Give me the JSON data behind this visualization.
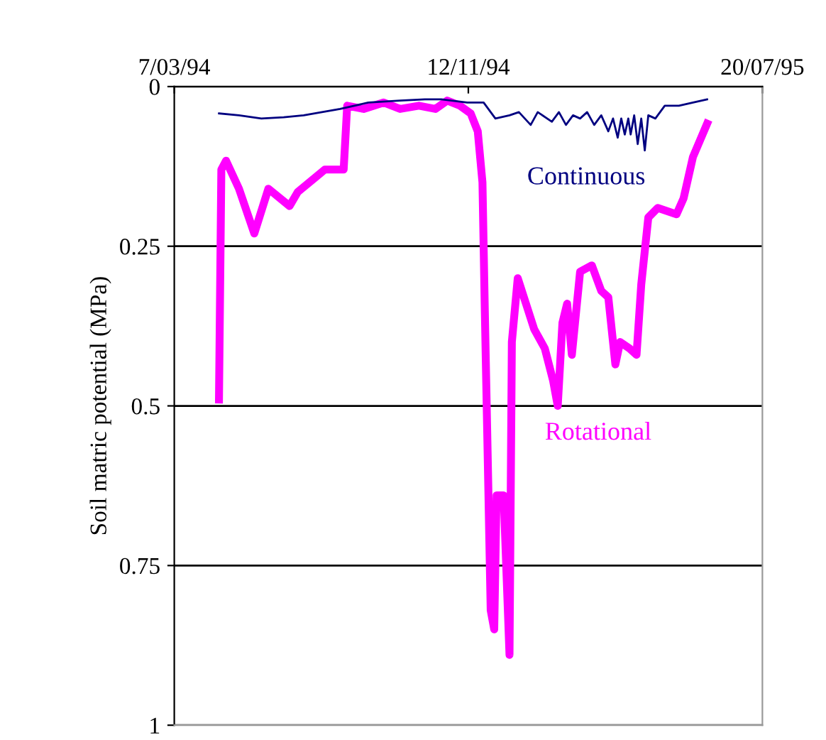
{
  "chart_data": {
    "type": "line",
    "ylabel": "Soil matric potential (MPa)",
    "xlim": [
      "1994-03-07",
      "1995-07-20"
    ],
    "xticks": [
      {
        "value": "1994-03-07",
        "label": "7/03/94"
      },
      {
        "value": "1994-11-12",
        "label": "12/11/94"
      },
      {
        "value": "1995-07-20",
        "label": "20/07/95"
      }
    ],
    "ylim": [
      1,
      0
    ],
    "yticks": [
      0,
      0.25,
      0.5,
      0.75,
      1
    ],
    "grid": "y",
    "legend": false,
    "marker": "none",
    "line_style": "solid",
    "series": [
      {
        "name": "Continuous",
        "color": "#000080",
        "x": [
          "1994-04-14",
          "1994-05-01",
          "1994-05-20",
          "1994-06-08",
          "1994-06-25",
          "1994-07-26",
          "1994-08-19",
          "1994-09-15",
          "1994-10-06",
          "1994-10-20",
          "1994-11-11",
          "1994-11-25",
          "1994-12-05",
          "1994-12-17",
          "1994-12-25",
          "1995-01-04",
          "1995-01-10",
          "1995-01-22",
          "1995-01-28",
          "1995-02-03",
          "1995-02-09",
          "1995-02-15",
          "1995-02-21",
          "1995-02-27",
          "1995-03-05",
          "1995-03-11",
          "1995-03-15",
          "1995-03-19",
          "1995-03-22",
          "1995-03-25",
          "1995-03-28",
          "1995-03-30",
          "1995-04-02",
          "1995-04-05",
          "1995-04-08",
          "1995-04-11",
          "1995-04-14",
          "1995-04-20",
          "1995-04-28",
          "1995-05-10",
          "1995-05-22",
          "1995-06-03"
        ],
        "values": [
          0.042,
          0.045,
          0.05,
          0.048,
          0.045,
          0.035,
          0.025,
          0.022,
          0.02,
          0.02,
          0.025,
          0.025,
          0.05,
          0.045,
          0.04,
          0.06,
          0.04,
          0.055,
          0.04,
          0.06,
          0.045,
          0.05,
          0.04,
          0.06,
          0.045,
          0.07,
          0.05,
          0.08,
          0.05,
          0.075,
          0.05,
          0.075,
          0.045,
          0.09,
          0.05,
          0.1,
          0.045,
          0.05,
          0.03,
          0.03,
          0.025,
          0.02
        ]
      },
      {
        "name": "Rotational",
        "color": "#ff00ff",
        "x": [
          "1994-04-14",
          "1994-04-16",
          "1994-04-20",
          "1994-05-01",
          "1994-05-14",
          "1994-05-26",
          "1994-06-13",
          "1994-06-20",
          "1994-07-13",
          "1994-07-29",
          "1994-08-01",
          "1994-08-15",
          "1994-09-01",
          "1994-09-15",
          "1994-10-01",
          "1994-10-15",
          "1994-10-25",
          "1994-11-05",
          "1994-11-14",
          "1994-11-20",
          "1994-11-24",
          "1994-11-26",
          "1994-11-29",
          "1994-12-01",
          "1994-12-04",
          "1994-12-06",
          "1994-12-12",
          "1994-12-17",
          "1994-12-19",
          "1994-12-24",
          "1994-12-31",
          "1995-01-07",
          "1995-01-16",
          "1995-01-23",
          "1995-01-27",
          "1995-01-31",
          "1995-02-04",
          "1995-02-08",
          "1995-02-15",
          "1995-02-25",
          "1995-03-05",
          "1995-03-11",
          "1995-03-17",
          "1995-03-21",
          "1995-03-29",
          "1995-04-04",
          "1995-04-08",
          "1995-04-14",
          "1995-04-22",
          "1995-05-08",
          "1995-05-14",
          "1995-05-22",
          "1995-06-03"
        ],
        "values": [
          0.49,
          0.13,
          0.116,
          0.16,
          0.23,
          0.16,
          0.187,
          0.165,
          0.13,
          0.13,
          0.03,
          0.035,
          0.025,
          0.035,
          0.03,
          0.035,
          0.022,
          0.03,
          0.042,
          0.07,
          0.15,
          0.35,
          0.63,
          0.82,
          0.85,
          0.64,
          0.64,
          0.89,
          0.4,
          0.3,
          0.34,
          0.38,
          0.41,
          0.46,
          0.5,
          0.37,
          0.34,
          0.42,
          0.29,
          0.28,
          0.32,
          0.33,
          0.435,
          0.4,
          0.41,
          0.42,
          0.31,
          0.205,
          0.19,
          0.2,
          0.175,
          0.11,
          0.058
        ]
      }
    ]
  }
}
